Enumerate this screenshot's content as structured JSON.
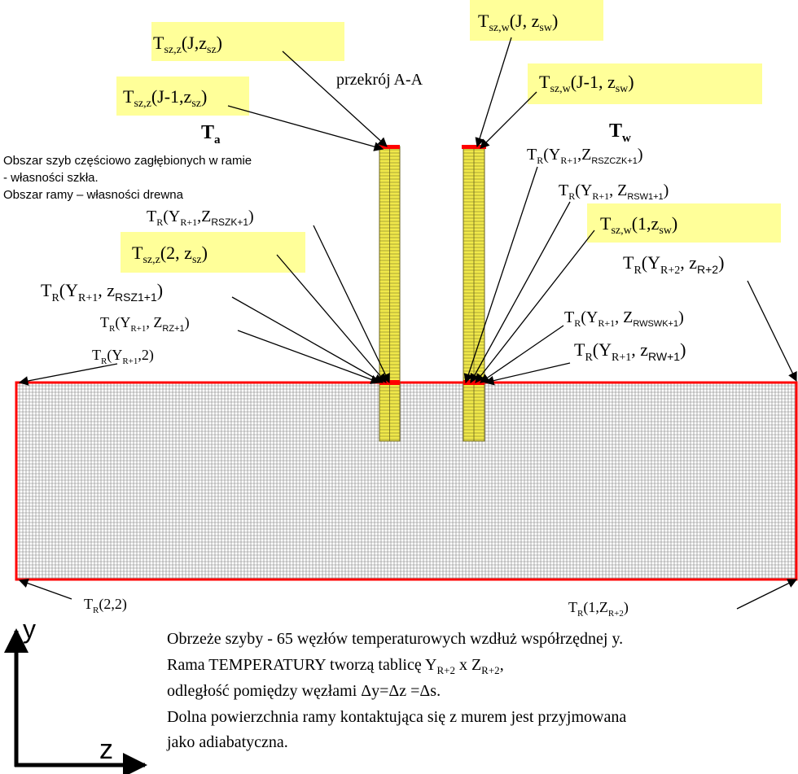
{
  "colors": {
    "label_box": "#ffff99",
    "glass": "#f0e84a",
    "glass_line": "#6b6420",
    "frame_border": "#ff0000",
    "grid_line": "#7f7f7f",
    "arrow": "#000000"
  },
  "section_label": "przekrój A-A",
  "sides": {
    "a": {
      "main": "T",
      "sub": "a"
    },
    "w": {
      "main": "T",
      "sub": "w"
    }
  },
  "legend": [
    "Obszar szyb częściowo zagłębionych w ramie",
    "- własności szkła.",
    "Obszar ramy – własności drewna"
  ],
  "highlighted_labels": [
    {
      "main": "T",
      "sub": "sz,z",
      "tail": "(J,z",
      "tail_sub": "sz",
      "end": ")"
    },
    {
      "main": "T",
      "sub": "sz,z",
      "tail": "(J-1,z",
      "tail_sub": "sz",
      "end": ")"
    },
    {
      "main": "T",
      "sub": "sz,z",
      "tail": "(2, z",
      "tail_sub": "sz",
      "end": ")"
    },
    {
      "main": "T",
      "sub": "sz,w",
      "tail": "(J, z",
      "tail_sub": "sw",
      "end": ")"
    },
    {
      "main": "T",
      "sub": "sz,w",
      "tail": "(J-1, z",
      "tail_sub": "sw",
      "end": ")"
    },
    {
      "main": "T",
      "sub": "sz,w",
      "tail": "(1,z",
      "tail_sub": "sw",
      "end": ")"
    }
  ],
  "node_labels": [
    {
      "main": "T",
      "sub": "R",
      "tail": "(Y",
      "tail_sub": "R+1",
      "mid": ",Z",
      "mid_sub": "RSZK+1",
      "end": ")"
    },
    {
      "main": "T",
      "sub": "R",
      "tail": "(Y",
      "tail_sub": "R+1",
      "mid": ", z",
      "mid_sub": "RSZ1+1",
      "end": ")"
    },
    {
      "main": "T",
      "sub": "R",
      "tail": "(Y",
      "tail_sub": "R+1",
      "mid": ", Z",
      "mid_sub": "RZ+1",
      "end": ")"
    },
    {
      "main": "T",
      "sub": "R",
      "tail": "(Y",
      "tail_sub": "R+1",
      "mid": ",2)",
      "mid_sub": "",
      "end": ""
    },
    {
      "main": "T",
      "sub": "R",
      "tail": "(Y",
      "tail_sub": "R+1",
      "mid": ",Z",
      "mid_sub": "RSZCZK+1",
      "end": ")"
    },
    {
      "main": "T",
      "sub": "R",
      "tail": "(Y",
      "tail_sub": "R+1",
      "mid": ", Z",
      "mid_sub": "RSW1+1",
      "end": ")"
    },
    {
      "main": "T",
      "sub": "R",
      "tail": "(Y",
      "tail_sub": "R+2",
      "mid": ", z",
      "mid_sub": "R+2",
      "end": ")"
    },
    {
      "main": "T",
      "sub": "R",
      "tail": "(Y",
      "tail_sub": "R+1",
      "mid": ", Z",
      "mid_sub": "RWSWK+1",
      "end": ")"
    },
    {
      "main": "T",
      "sub": "R",
      "tail": "(Y",
      "tail_sub": "R+1",
      "mid": ", z",
      "mid_sub": "RW+1",
      "end": ")"
    },
    {
      "main": "T",
      "sub": "R",
      "tail": "(2,2)",
      "tail_sub": "",
      "mid": "",
      "mid_sub": "",
      "end": ""
    },
    {
      "main": "T",
      "sub": "R",
      "tail": "(1,Z",
      "tail_sub": "R+2",
      "mid": ")",
      "mid_sub": "",
      "end": ""
    }
  ],
  "notes": [
    "Obrzeże szyby - 65 węzłów temperaturowych wzdłuż współrzędnej y.",
    "Rama TEMPERATURY tworzą tablicę Y",
    "R+2",
    " x Z",
    "R+2",
    ",",
    "odległość pomiędzy węzłami Δy=Δz =Δs.",
    "Dolna powierzchnia ramy kontaktująca się z murem jest przyjmowana",
    "jako adiabatyczna."
  ],
  "axes": {
    "y": "y",
    "z": "z"
  }
}
